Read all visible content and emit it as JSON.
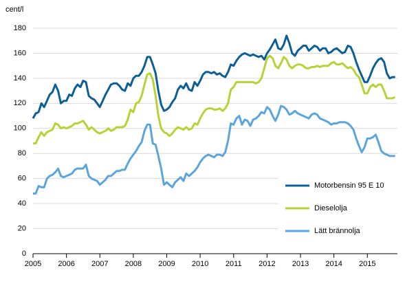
{
  "chart_data": {
    "type": "line",
    "y_label": "cent/l",
    "x": [
      2005,
      2005.083,
      2005.167,
      2005.25,
      2005.333,
      2005.417,
      2005.5,
      2005.583,
      2005.667,
      2005.75,
      2005.833,
      2005.917,
      2006,
      2006.083,
      2006.167,
      2006.25,
      2006.333,
      2006.417,
      2006.5,
      2006.583,
      2006.667,
      2006.75,
      2006.833,
      2006.917,
      2007,
      2007.083,
      2007.167,
      2007.25,
      2007.333,
      2007.417,
      2007.5,
      2007.583,
      2007.667,
      2007.75,
      2007.833,
      2007.917,
      2008,
      2008.083,
      2008.167,
      2008.25,
      2008.333,
      2008.417,
      2008.5,
      2008.583,
      2008.667,
      2008.75,
      2008.833,
      2008.917,
      2009,
      2009.083,
      2009.167,
      2009.25,
      2009.333,
      2009.417,
      2009.5,
      2009.583,
      2009.667,
      2009.75,
      2009.833,
      2009.917,
      2010,
      2010.083,
      2010.167,
      2010.25,
      2010.333,
      2010.417,
      2010.5,
      2010.583,
      2010.667,
      2010.75,
      2010.833,
      2010.917,
      2011,
      2011.083,
      2011.167,
      2011.25,
      2011.333,
      2011.417,
      2011.5,
      2011.583,
      2011.667,
      2011.75,
      2011.833,
      2011.917,
      2012,
      2012.083,
      2012.167,
      2012.25,
      2012.333,
      2012.417,
      2012.5,
      2012.583,
      2012.667,
      2012.75,
      2012.833,
      2012.917,
      2013,
      2013.083,
      2013.167,
      2013.25,
      2013.333,
      2013.417,
      2013.5,
      2013.583,
      2013.667,
      2013.75,
      2013.833,
      2013.917,
      2014,
      2014.083,
      2014.167,
      2014.25,
      2014.333,
      2014.417,
      2014.5,
      2014.583,
      2014.667,
      2014.75,
      2014.833,
      2014.917,
      2015,
      2015.083,
      2015.167,
      2015.25,
      2015.333,
      2015.417,
      2015.5,
      2015.583,
      2015.667,
      2015.75,
      2015.833
    ],
    "series": [
      {
        "name": "Motorbensin 95 E 10",
        "color": "#0b5e96",
        "values": [
          108,
          112,
          113,
          120,
          117,
          122,
          127,
          129,
          135,
          130,
          120,
          122,
          122,
          127,
          126,
          132,
          135,
          133,
          138,
          137,
          126,
          124,
          123,
          120,
          117,
          122,
          127,
          131,
          135,
          136,
          136,
          134,
          131,
          130,
          136,
          134,
          140,
          142,
          142,
          145,
          150,
          157,
          157,
          151,
          144,
          130,
          119,
          114,
          115,
          117,
          121,
          124,
          131,
          134,
          132,
          136,
          131,
          130,
          137,
          134,
          138,
          143,
          145,
          145,
          144,
          145,
          143,
          144,
          142,
          141,
          145,
          151,
          150,
          154,
          157,
          159,
          160,
          159,
          158,
          159,
          158,
          157,
          158,
          155,
          160,
          163,
          167,
          171,
          164,
          163,
          167,
          174,
          168,
          160,
          158,
          162,
          164,
          166,
          166,
          162,
          164,
          166,
          165,
          162,
          164,
          164,
          160,
          161,
          163,
          164,
          162,
          160,
          161,
          166,
          165,
          160,
          153,
          147,
          142,
          137,
          137,
          142,
          148,
          152,
          155,
          156,
          153,
          144,
          140,
          141,
          141
        ]
      },
      {
        "name": "Dieselolja",
        "color": "#b5d334",
        "values": [
          88,
          88,
          93,
          97,
          94,
          97,
          98,
          99,
          104,
          103,
          100,
          101,
          100,
          101,
          102,
          104,
          104,
          105,
          106,
          103,
          99,
          101,
          99,
          97,
          96,
          97,
          98,
          100,
          98,
          99,
          101,
          101,
          101,
          102,
          107,
          115,
          113,
          120,
          121,
          126,
          135,
          143,
          144,
          139,
          126,
          110,
          100,
          97,
          96,
          94,
          96,
          99,
          101,
          100,
          99,
          101,
          99,
          100,
          104,
          103,
          108,
          112,
          115,
          116,
          116,
          115,
          115,
          116,
          114,
          116,
          120,
          131,
          133,
          137,
          137,
          137,
          137,
          137,
          137,
          137,
          136,
          137,
          140,
          148,
          156,
          158,
          156,
          150,
          148,
          152,
          157,
          155,
          150,
          148,
          150,
          151,
          151,
          150,
          148,
          148,
          149,
          149,
          150,
          149,
          150,
          150,
          150,
          152,
          153,
          151,
          151,
          152,
          150,
          148,
          149,
          147,
          143,
          141,
          135,
          128,
          128,
          133,
          135,
          133,
          135,
          135,
          130,
          124,
          124,
          124,
          125
        ]
      },
      {
        "name": "Lätt brännolja",
        "color": "#5aa5dc",
        "values": [
          48,
          48,
          54,
          53,
          53,
          60,
          62,
          63,
          65,
          68,
          62,
          61,
          62,
          63,
          64,
          67,
          68,
          68,
          68,
          71,
          62,
          60,
          59,
          58,
          55,
          57,
          59,
          62,
          62,
          64,
          66,
          66,
          67,
          67,
          72,
          76,
          79,
          82,
          86,
          89,
          98,
          103,
          103,
          88,
          87,
          78,
          68,
          55,
          57,
          55,
          53,
          57,
          59,
          61,
          58,
          64,
          62,
          64,
          66,
          69,
          73,
          76,
          78,
          79,
          78,
          77,
          79,
          79,
          78,
          81,
          90,
          104,
          103,
          108,
          110,
          103,
          107,
          106,
          102,
          107,
          108,
          110,
          113,
          112,
          117,
          115,
          110,
          106,
          111,
          118,
          117,
          115,
          111,
          112,
          114,
          112,
          111,
          110,
          109,
          108,
          111,
          112,
          111,
          108,
          107,
          106,
          105,
          103,
          104,
          104,
          105,
          105,
          105,
          104,
          102,
          99,
          92,
          86,
          81,
          85,
          92,
          92,
          93,
          95,
          89,
          82,
          80,
          79,
          78,
          78,
          78
        ]
      }
    ],
    "xlim": [
      2005,
      2015.9
    ],
    "xticks": [
      2005,
      2006,
      2007,
      2008,
      2009,
      2010,
      2011,
      2012,
      2013,
      2014,
      2015
    ],
    "ylim": [
      0,
      180
    ],
    "yticks": [
      0,
      20,
      40,
      60,
      80,
      100,
      120,
      140,
      160,
      180
    ],
    "grid": true,
    "legend": "lower right"
  }
}
